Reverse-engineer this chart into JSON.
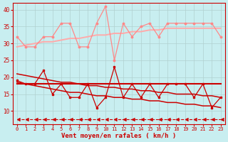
{
  "bg_color": "#c8eef0",
  "grid_color": "#b0d0d0",
  "xlabel": "Vent moyen/en rafales ( km/h )",
  "xlabel_color": "#cc0000",
  "tick_color": "#cc0000",
  "ylim": [
    6,
    42
  ],
  "xlim": [
    -0.5,
    23.5
  ],
  "yticks": [
    10,
    15,
    20,
    25,
    30,
    35,
    40
  ],
  "xticks": [
    0,
    1,
    2,
    3,
    4,
    5,
    6,
    7,
    8,
    9,
    10,
    11,
    12,
    13,
    14,
    15,
    16,
    17,
    18,
    19,
    20,
    21,
    22,
    23
  ],
  "series": {
    "rafales": {
      "y": [
        32,
        29,
        29,
        32,
        32,
        36,
        36,
        29,
        29,
        36,
        41,
        25,
        36,
        32,
        35,
        36,
        32,
        36,
        36,
        36,
        36,
        36,
        36,
        32
      ],
      "color": "#ff8888",
      "lw": 0.9,
      "marker": "o",
      "ms": 1.8
    },
    "trend_rafales": {
      "y": [
        29.0,
        29.5,
        30.0,
        30.5,
        30.5,
        31.0,
        31.5,
        31.5,
        32.0,
        32.5,
        32.5,
        33.0,
        33.0,
        33.5,
        33.5,
        34.0,
        34.0,
        34.5,
        34.5,
        34.5,
        34.5,
        34.5,
        34.5,
        34.5
      ],
      "color": "#ffaaaa",
      "lw": 1.4,
      "marker": null
    },
    "moyen": {
      "y": [
        19,
        18,
        18,
        22,
        15,
        18,
        14,
        14,
        18,
        11,
        14,
        23,
        14,
        18,
        14,
        18,
        14,
        18,
        18,
        18,
        14,
        18,
        11,
        14
      ],
      "color": "#cc0000",
      "lw": 0.9,
      "marker": "s",
      "ms": 1.8
    },
    "trend_moyen_upper": {
      "y": [
        21,
        20.5,
        20.0,
        19.5,
        19.0,
        18.5,
        18.5,
        18.0,
        17.5,
        17.5,
        17.0,
        17.0,
        16.5,
        16.5,
        16.0,
        16.0,
        15.5,
        15.5,
        15.0,
        15.0,
        15.0,
        14.5,
        14.5,
        14.0
      ],
      "color": "#cc0000",
      "lw": 1.1,
      "marker": null
    },
    "trend_moyen_lower": {
      "y": [
        18.5,
        18.0,
        17.5,
        17.0,
        16.5,
        16.0,
        15.5,
        15.5,
        15.0,
        14.5,
        14.5,
        14.0,
        14.0,
        13.5,
        13.5,
        13.0,
        13.0,
        12.5,
        12.5,
        12.0,
        12.0,
        11.5,
        11.5,
        11.0
      ],
      "color": "#cc0000",
      "lw": 1.1,
      "marker": null
    },
    "constant_18": {
      "y": [
        18,
        18,
        18,
        18,
        18,
        18,
        18,
        18,
        18,
        18,
        18,
        18,
        18,
        18,
        18,
        18,
        18,
        18,
        18,
        18,
        18,
        18,
        18,
        18
      ],
      "color": "#cc0000",
      "lw": 1.5,
      "marker": null
    },
    "dashed_bottom": {
      "y": [
        7.5,
        7.5,
        7.5,
        7.5,
        7.5,
        7.5,
        7.5,
        7.5,
        7.5,
        7.5,
        7.5,
        7.5,
        7.5,
        7.5,
        7.5,
        7.5,
        7.5,
        7.5,
        7.5,
        7.5,
        7.5,
        7.5,
        7.5,
        7.5
      ],
      "color": "#cc0000",
      "lw": 0.8,
      "marker": 4,
      "ms": 3.5,
      "linestyle": "--"
    }
  }
}
